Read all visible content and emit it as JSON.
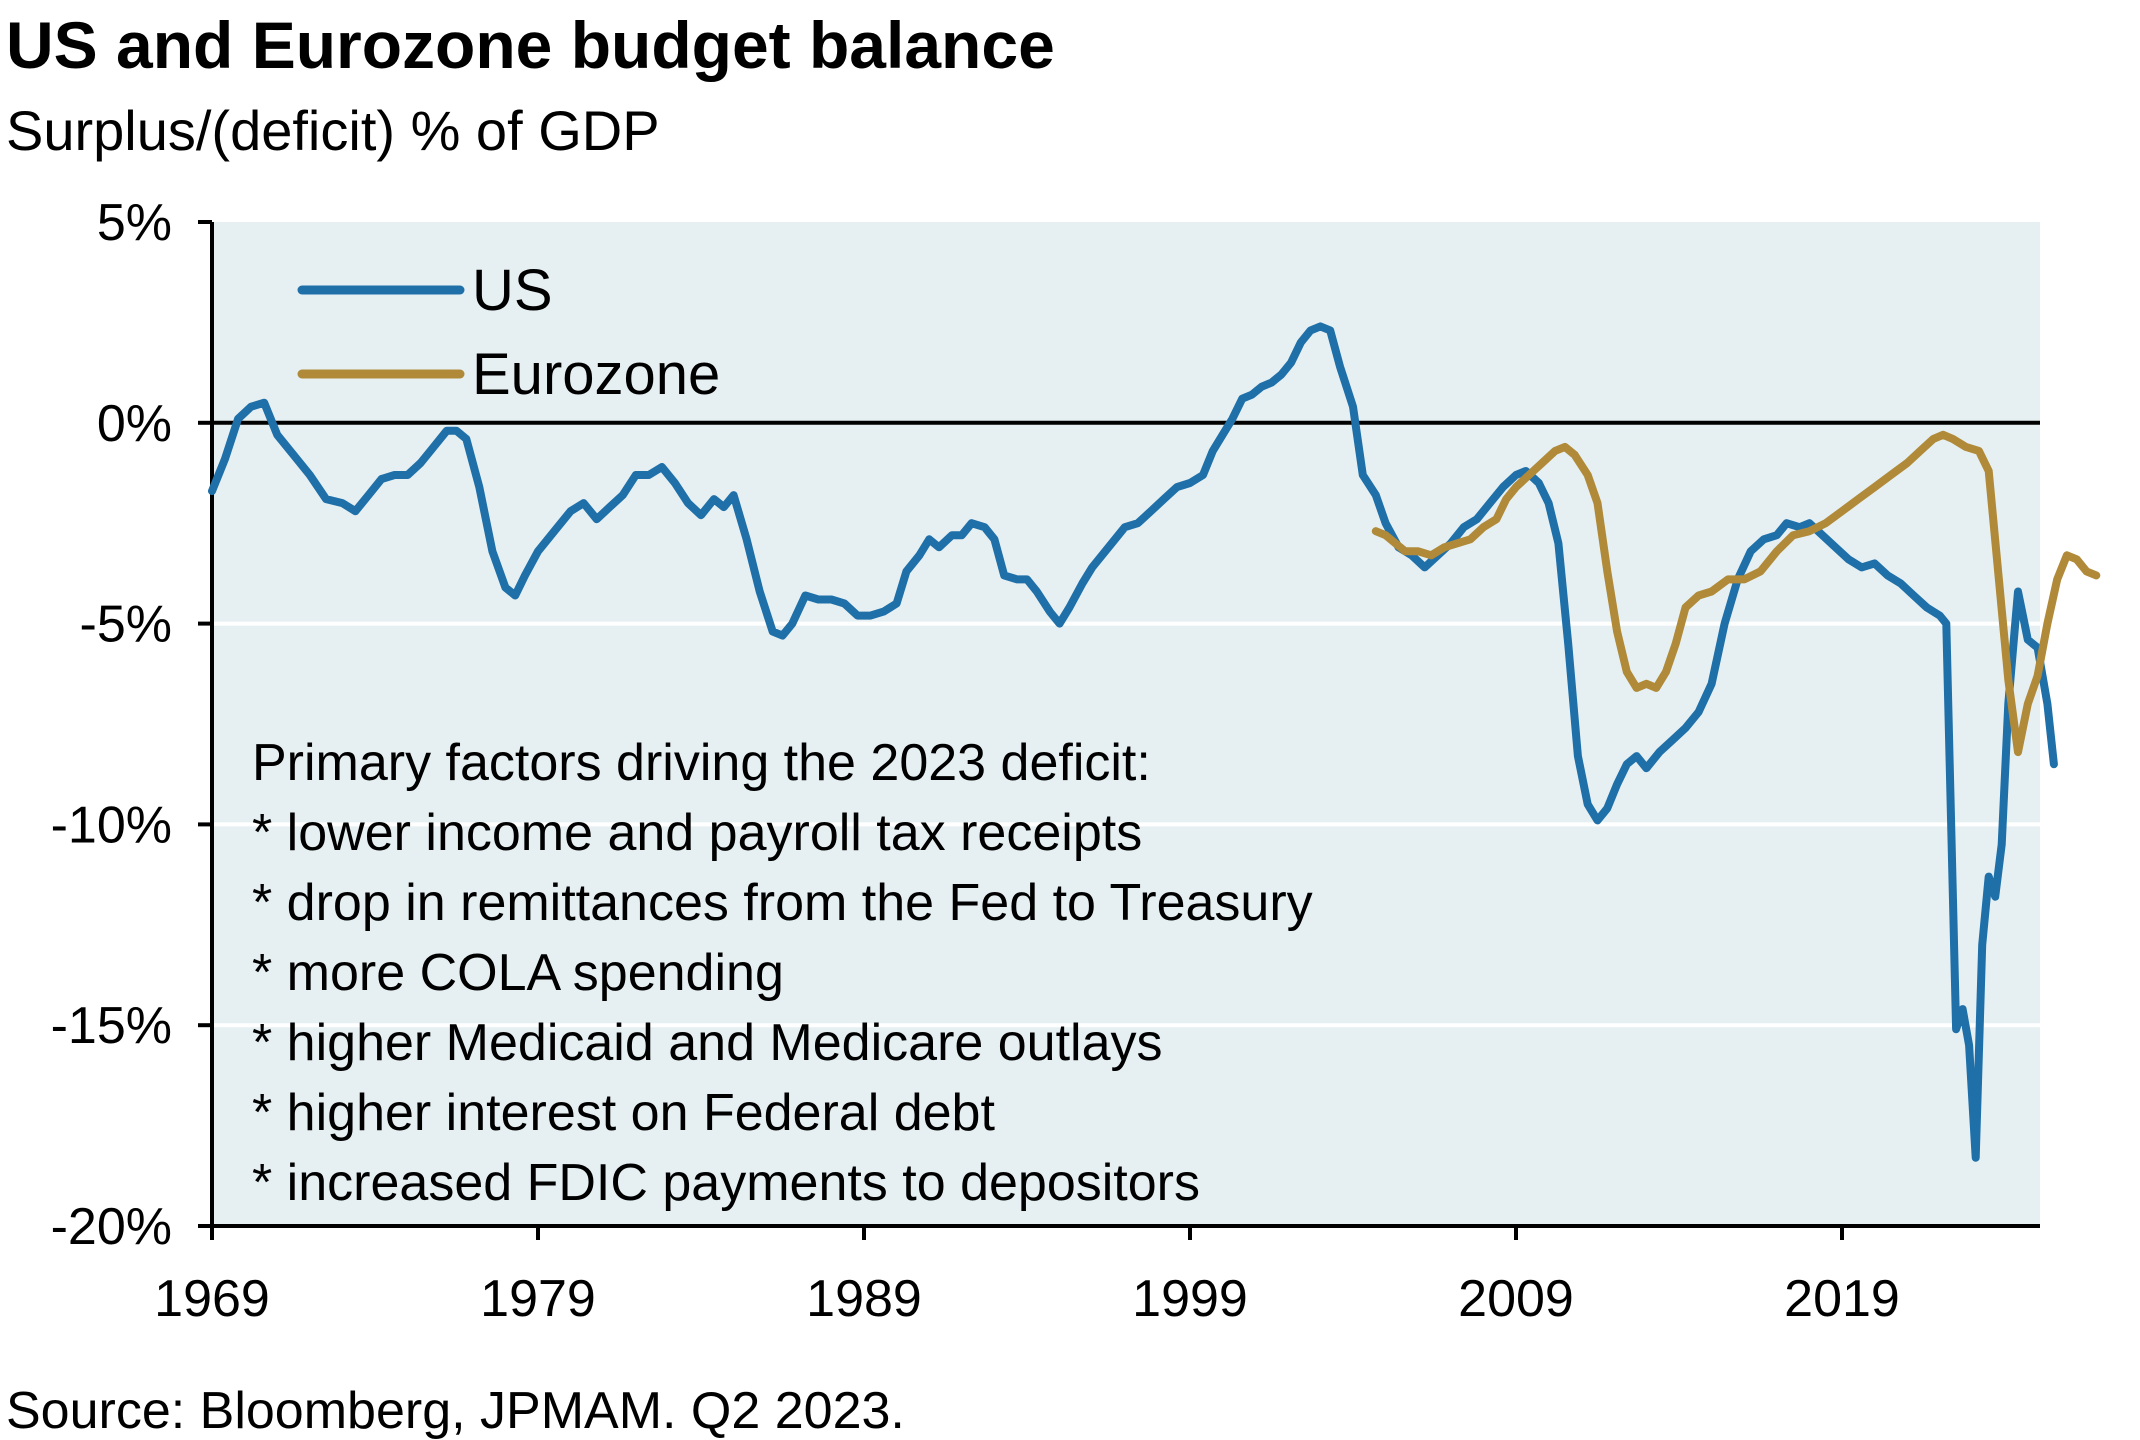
{
  "header": {
    "title": "US and Eurozone budget balance",
    "subtitle": "Surplus/(deficit) % of GDP"
  },
  "footer": {
    "source": "Source: Bloomberg, JPMAM. Q2 2023."
  },
  "annotation": {
    "lines": [
      "Primary factors driving the 2023 deficit:",
      "* lower income and payroll tax receipts",
      "* drop in remittances from the Fed to Treasury",
      "* more COLA spending",
      "* higher Medicaid and Medicare outlays",
      "* higher interest on Federal debt",
      "* increased FDIC payments to depositors"
    ]
  },
  "colors": {
    "us": "#1f6fa8",
    "eurozone": "#b08a38",
    "plot_background": "#e6f0f3",
    "gridline": "#ffffff",
    "axis": "#000000"
  },
  "chart_data": {
    "type": "line",
    "title": "US and Eurozone budget balance",
    "subtitle": "Surplus/(deficit) % of GDP",
    "xlabel": "",
    "ylabel": "",
    "xlim": [
      1969,
      2025
    ],
    "ylim": [
      -20,
      5
    ],
    "x_ticks": [
      1969,
      1979,
      1989,
      1999,
      2009,
      2019
    ],
    "x_tick_labels": [
      "1969",
      "1979",
      "1989",
      "1999",
      "2009",
      "2019"
    ],
    "y_ticks": [
      5,
      0,
      -5,
      -10,
      -15,
      -20
    ],
    "y_tick_labels": [
      "5%",
      "0%",
      "-5%",
      "-10%",
      "-15%",
      "-20%"
    ],
    "grid": "horizontal",
    "legend": {
      "position": "top-left",
      "entries": [
        "US",
        "Eurozone"
      ]
    },
    "series": [
      {
        "name": "US",
        "color": "#1f6fa8",
        "points": [
          [
            1969.0,
            -1.7
          ],
          [
            1969.4,
            -0.9
          ],
          [
            1969.8,
            0.1
          ],
          [
            1970.2,
            0.4
          ],
          [
            1970.6,
            0.5
          ],
          [
            1971.0,
            -0.3
          ],
          [
            1971.5,
            -0.8
          ],
          [
            1972.0,
            -1.3
          ],
          [
            1972.5,
            -1.9
          ],
          [
            1973.0,
            -2.0
          ],
          [
            1973.4,
            -2.2
          ],
          [
            1973.8,
            -1.8
          ],
          [
            1974.2,
            -1.4
          ],
          [
            1974.6,
            -1.3
          ],
          [
            1975.0,
            -1.3
          ],
          [
            1975.4,
            -1.0
          ],
          [
            1975.8,
            -0.6
          ],
          [
            1976.2,
            -0.2
          ],
          [
            1976.5,
            -0.2
          ],
          [
            1976.8,
            -0.4
          ],
          [
            1977.2,
            -1.6
          ],
          [
            1977.6,
            -3.2
          ],
          [
            1978.0,
            -4.1
          ],
          [
            1978.3,
            -4.3
          ],
          [
            1978.6,
            -3.8
          ],
          [
            1979.0,
            -3.2
          ],
          [
            1979.5,
            -2.7
          ],
          [
            1980.0,
            -2.2
          ],
          [
            1980.4,
            -2.0
          ],
          [
            1980.8,
            -2.4
          ],
          [
            1981.2,
            -2.1
          ],
          [
            1981.6,
            -1.8
          ],
          [
            1982.0,
            -1.3
          ],
          [
            1982.4,
            -1.3
          ],
          [
            1982.8,
            -1.1
          ],
          [
            1983.2,
            -1.5
          ],
          [
            1983.6,
            -2.0
          ],
          [
            1984.0,
            -2.3
          ],
          [
            1984.4,
            -1.9
          ],
          [
            1984.7,
            -2.1
          ],
          [
            1985.0,
            -1.8
          ],
          [
            1985.4,
            -2.9
          ],
          [
            1985.8,
            -4.2
          ],
          [
            1986.2,
            -5.2
          ],
          [
            1986.5,
            -5.3
          ],
          [
            1986.8,
            -5.0
          ],
          [
            1987.2,
            -4.3
          ],
          [
            1987.6,
            -4.4
          ],
          [
            1988.0,
            -4.4
          ],
          [
            1988.4,
            -4.5
          ],
          [
            1988.8,
            -4.8
          ],
          [
            1989.2,
            -4.8
          ],
          [
            1989.6,
            -4.7
          ],
          [
            1990.0,
            -4.5
          ],
          [
            1990.3,
            -3.7
          ],
          [
            1990.7,
            -3.3
          ],
          [
            1991.0,
            -2.9
          ],
          [
            1991.3,
            -3.1
          ],
          [
            1991.7,
            -2.8
          ],
          [
            1992.0,
            -2.8
          ],
          [
            1992.3,
            -2.5
          ],
          [
            1992.7,
            -2.6
          ],
          [
            1993.0,
            -2.9
          ],
          [
            1993.3,
            -3.8
          ],
          [
            1993.7,
            -3.9
          ],
          [
            1994.0,
            -3.9
          ],
          [
            1994.3,
            -4.2
          ],
          [
            1994.7,
            -4.7
          ],
          [
            1995.0,
            -5.0
          ],
          [
            1995.3,
            -4.6
          ],
          [
            1995.7,
            -4.0
          ],
          [
            1996.0,
            -3.6
          ],
          [
            1996.5,
            -3.1
          ],
          [
            1997.0,
            -2.6
          ],
          [
            1997.4,
            -2.5
          ],
          [
            1997.8,
            -2.2
          ],
          [
            1998.2,
            -1.9
          ],
          [
            1998.6,
            -1.6
          ],
          [
            1999.0,
            -1.5
          ],
          [
            1999.4,
            -1.3
          ],
          [
            1999.7,
            -0.7
          ],
          [
            2000.0,
            -0.3
          ],
          [
            2000.3,
            0.1
          ],
          [
            2000.6,
            0.6
          ],
          [
            2000.9,
            0.7
          ],
          [
            2001.2,
            0.9
          ],
          [
            2001.5,
            1.0
          ],
          [
            2001.8,
            1.2
          ],
          [
            2002.1,
            1.5
          ],
          [
            2002.4,
            2.0
          ],
          [
            2002.7,
            2.3
          ],
          [
            2003.0,
            2.4
          ],
          [
            2003.3,
            2.3
          ],
          [
            2003.6,
            1.4
          ],
          [
            2004.0,
            0.4
          ],
          [
            2004.3,
            -1.3
          ],
          [
            2004.7,
            -1.8
          ],
          [
            2005.0,
            -2.5
          ],
          [
            2005.4,
            -3.1
          ],
          [
            2005.8,
            -3.3
          ],
          [
            2006.2,
            -3.6
          ],
          [
            2006.6,
            -3.3
          ],
          [
            2007.0,
            -3.0
          ],
          [
            2007.4,
            -2.6
          ],
          [
            2007.8,
            -2.4
          ],
          [
            2008.2,
            -2.0
          ],
          [
            2008.6,
            -1.6
          ],
          [
            2009.0,
            -1.3
          ],
          [
            2009.3,
            -1.2
          ],
          [
            2009.7,
            -1.5
          ],
          [
            2010.0,
            -2.0
          ],
          [
            2010.3,
            -3.0
          ],
          [
            2010.6,
            -5.5
          ],
          [
            2010.9,
            -8.3
          ],
          [
            2011.2,
            -9.5
          ],
          [
            2011.5,
            -9.9
          ],
          [
            2011.8,
            -9.6
          ],
          [
            2012.1,
            -9.0
          ],
          [
            2012.4,
            -8.5
          ],
          [
            2012.7,
            -8.3
          ],
          [
            2013.0,
            -8.6
          ],
          [
            2013.4,
            -8.2
          ],
          [
            2013.8,
            -7.9
          ],
          [
            2014.2,
            -7.6
          ],
          [
            2014.6,
            -7.2
          ],
          [
            2015.0,
            -6.5
          ],
          [
            2015.4,
            -5.0
          ],
          [
            2015.8,
            -3.9
          ],
          [
            2016.2,
            -3.2
          ],
          [
            2016.6,
            -2.9
          ],
          [
            2017.0,
            -2.8
          ],
          [
            2017.3,
            -2.5
          ],
          [
            2017.7,
            -2.6
          ],
          [
            2018.0,
            -2.5
          ],
          [
            2018.4,
            -2.8
          ],
          [
            2018.8,
            -3.1
          ],
          [
            2019.2,
            -3.4
          ],
          [
            2019.6,
            -3.6
          ],
          [
            2020.0,
            -3.5
          ],
          [
            2020.4,
            -3.8
          ],
          [
            2020.8,
            -4.0
          ],
          [
            2021.2,
            -4.3
          ],
          [
            2021.6,
            -4.6
          ],
          [
            2022.0,
            -4.8
          ],
          [
            2022.2,
            -5.0
          ],
          [
            2022.5,
            -15.1
          ],
          [
            2022.7,
            -14.6
          ],
          [
            2022.9,
            -15.5
          ],
          [
            2023.1,
            -18.3
          ],
          [
            2023.3,
            -13.0
          ],
          [
            2023.5,
            -11.3
          ],
          [
            2023.7,
            -11.8
          ],
          [
            2023.9,
            -10.5
          ],
          [
            2024.1,
            -7.0
          ],
          [
            2024.4,
            -4.2
          ],
          [
            2024.7,
            -5.4
          ],
          [
            2025.0,
            -5.6
          ],
          [
            2025.3,
            -7.0
          ],
          [
            2025.5,
            -8.5
          ]
        ]
      },
      {
        "name": "Eurozone",
        "color": "#b08a38",
        "points": [
          [
            2004.7,
            -2.7
          ],
          [
            2005.0,
            -2.8
          ],
          [
            2005.3,
            -3.0
          ],
          [
            2005.6,
            -3.2
          ],
          [
            2006.0,
            -3.2
          ],
          [
            2006.4,
            -3.3
          ],
          [
            2006.8,
            -3.1
          ],
          [
            2007.2,
            -3.0
          ],
          [
            2007.6,
            -2.9
          ],
          [
            2008.0,
            -2.6
          ],
          [
            2008.4,
            -2.4
          ],
          [
            2008.7,
            -1.9
          ],
          [
            2009.0,
            -1.6
          ],
          [
            2009.4,
            -1.3
          ],
          [
            2009.8,
            -1.0
          ],
          [
            2010.2,
            -0.7
          ],
          [
            2010.5,
            -0.6
          ],
          [
            2010.8,
            -0.8
          ],
          [
            2011.2,
            -1.3
          ],
          [
            2011.5,
            -2.0
          ],
          [
            2011.8,
            -3.7
          ],
          [
            2012.1,
            -5.2
          ],
          [
            2012.4,
            -6.2
          ],
          [
            2012.7,
            -6.6
          ],
          [
            2013.0,
            -6.5
          ],
          [
            2013.3,
            -6.6
          ],
          [
            2013.6,
            -6.2
          ],
          [
            2013.9,
            -5.5
          ],
          [
            2014.2,
            -4.6
          ],
          [
            2014.6,
            -4.3
          ],
          [
            2015.0,
            -4.2
          ],
          [
            2015.5,
            -3.9
          ],
          [
            2016.0,
            -3.9
          ],
          [
            2016.5,
            -3.7
          ],
          [
            2017.0,
            -3.2
          ],
          [
            2017.5,
            -2.8
          ],
          [
            2018.0,
            -2.7
          ],
          [
            2018.5,
            -2.5
          ],
          [
            2019.0,
            -2.2
          ],
          [
            2019.5,
            -1.9
          ],
          [
            2020.0,
            -1.6
          ],
          [
            2020.5,
            -1.3
          ],
          [
            2021.0,
            -1.0
          ],
          [
            2021.4,
            -0.7
          ],
          [
            2021.8,
            -0.4
          ],
          [
            2022.1,
            -0.3
          ],
          [
            2022.4,
            -0.4
          ],
          [
            2022.8,
            -0.6
          ],
          [
            2023.2,
            -0.7
          ],
          [
            2023.5,
            -1.2
          ],
          [
            2023.8,
            -3.8
          ],
          [
            2024.1,
            -6.4
          ],
          [
            2024.4,
            -8.2
          ],
          [
            2024.7,
            -7.0
          ],
          [
            2025.0,
            -6.3
          ],
          [
            2025.3,
            -5.0
          ],
          [
            2025.6,
            -3.9
          ],
          [
            2025.9,
            -3.3
          ],
          [
            2026.2,
            -3.4
          ],
          [
            2026.5,
            -3.7
          ],
          [
            2026.8,
            -3.8
          ]
        ]
      }
    ]
  }
}
